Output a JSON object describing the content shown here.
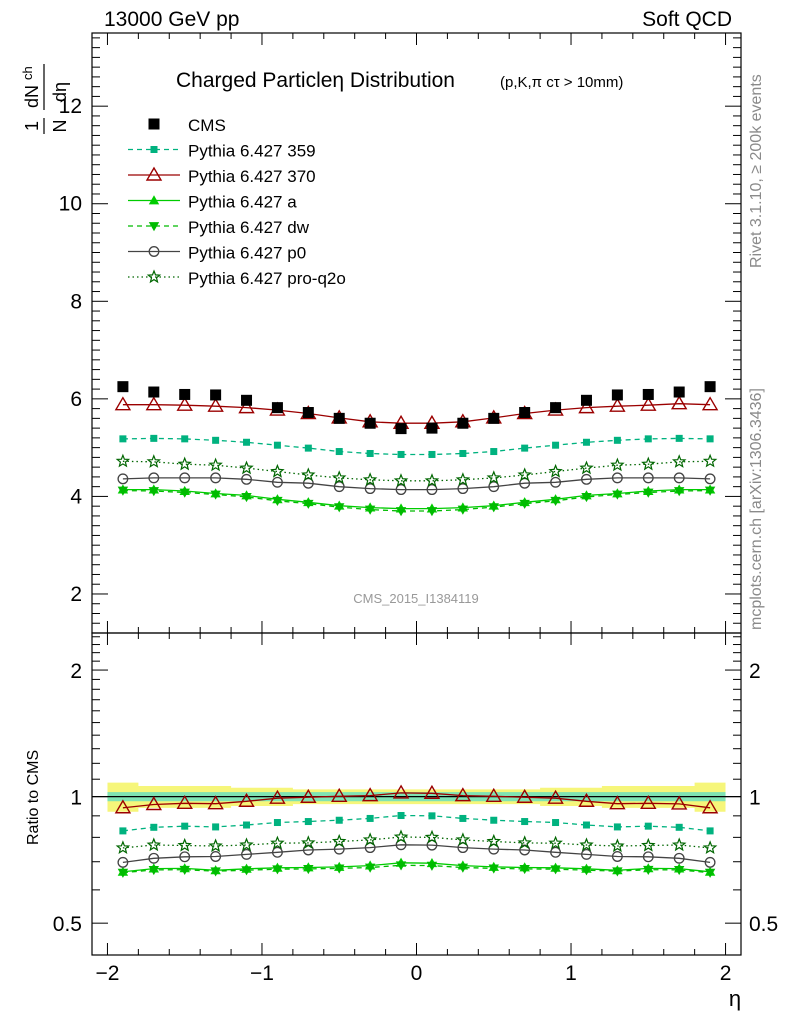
{
  "header": {
    "left": "13000 GeV pp",
    "right": "Soft QCD"
  },
  "side_labels": {
    "rivet": "Rivet 3.1.10, ≥ 200k events",
    "mcplots": "mcplots.cern.ch [arXiv:1306.3436]"
  },
  "chart_data": {
    "type": "line",
    "title": "Charged Particleη Distribution",
    "title_sub": "(p,K,π cτ > 10mm)",
    "watermark": "CMS_2015_I1384119",
    "xlabel": "η",
    "ylabel_main": "1/N dN_ch/dη",
    "ylabel_ratio": "Ratio to CMS",
    "xlim": [
      -2.1,
      2.1
    ],
    "ylim_main": [
      1.2,
      13.5
    ],
    "ylim_ratio": [
      0.42,
      2.45
    ],
    "ratio_log": true,
    "x_ticks": [
      "−2",
      "−1",
      "0",
      "1",
      "2"
    ],
    "y_ticks_main": [
      "2",
      "4",
      "6",
      "8",
      "10",
      "12"
    ],
    "y_ticks_ratio": [
      "0.5",
      "1",
      "2"
    ],
    "x": [
      -1.9,
      -1.7,
      -1.5,
      -1.3,
      -1.1,
      -0.9,
      -0.7,
      -0.5,
      -0.3,
      -0.1,
      0.1,
      0.3,
      0.5,
      0.7,
      0.9,
      1.1,
      1.3,
      1.5,
      1.7,
      1.9
    ],
    "legend_position": "top-left",
    "data": {
      "name": "CMS",
      "color": "#000000",
      "values": [
        6.25,
        6.14,
        6.09,
        6.08,
        5.97,
        5.82,
        5.72,
        5.6,
        5.5,
        5.39,
        5.4,
        5.5,
        5.6,
        5.72,
        5.82,
        5.97,
        6.08,
        6.09,
        6.14,
        6.25
      ]
    },
    "series": [
      {
        "name": "Pythia 6.427 359",
        "color": "#00b27f",
        "dash": "5,4",
        "marker": "square",
        "values": [
          5.18,
          5.19,
          5.18,
          5.15,
          5.11,
          5.05,
          4.99,
          4.92,
          4.88,
          4.86,
          4.86,
          4.88,
          4.92,
          4.99,
          5.05,
          5.11,
          5.15,
          5.18,
          5.19,
          5.18
        ]
      },
      {
        "name": "Pythia 6.427 370",
        "color": "#9b0000",
        "dash": "",
        "marker": "triangle-open",
        "values": [
          5.88,
          5.88,
          5.87,
          5.85,
          5.82,
          5.77,
          5.7,
          5.61,
          5.53,
          5.5,
          5.5,
          5.53,
          5.61,
          5.7,
          5.77,
          5.82,
          5.85,
          5.87,
          5.9,
          5.88
        ]
      },
      {
        "name": "Pythia 6.427 a",
        "color": "#00cc00",
        "dash": "",
        "marker": "triangle",
        "values": [
          4.14,
          4.14,
          4.11,
          4.06,
          4.02,
          3.94,
          3.88,
          3.81,
          3.77,
          3.75,
          3.75,
          3.77,
          3.81,
          3.88,
          3.94,
          4.02,
          4.06,
          4.11,
          4.14,
          4.14
        ]
      },
      {
        "name": "Pythia 6.427 dw",
        "color": "#00bb00",
        "dash": "5,4",
        "marker": "triangle-down",
        "values": [
          4.12,
          4.11,
          4.08,
          4.04,
          3.99,
          3.91,
          3.85,
          3.78,
          3.73,
          3.7,
          3.7,
          3.73,
          3.78,
          3.85,
          3.91,
          3.99,
          4.04,
          4.08,
          4.11,
          4.12
        ]
      },
      {
        "name": "Pythia 6.427 p0",
        "color": "#444444",
        "dash": "",
        "marker": "circle-open",
        "values": [
          4.36,
          4.38,
          4.38,
          4.38,
          4.35,
          4.29,
          4.27,
          4.2,
          4.16,
          4.14,
          4.14,
          4.16,
          4.2,
          4.27,
          4.29,
          4.35,
          4.38,
          4.38,
          4.38,
          4.36
        ]
      },
      {
        "name": "Pythia 6.427 pro-q2o",
        "color": "#006600",
        "dash": "1.5,3",
        "marker": "star-open",
        "values": [
          4.72,
          4.71,
          4.66,
          4.64,
          4.58,
          4.51,
          4.44,
          4.38,
          4.34,
          4.32,
          4.32,
          4.34,
          4.38,
          4.44,
          4.51,
          4.58,
          4.64,
          4.66,
          4.71,
          4.72
        ]
      }
    ],
    "ratio_band": {
      "inner_rel": 0.025,
      "outer_rel": [
        0.08,
        0.06,
        0.06,
        0.06,
        0.05,
        0.05,
        0.04,
        0.04,
        0.04,
        0.04,
        0.04,
        0.04,
        0.04,
        0.04,
        0.05,
        0.05,
        0.06,
        0.06,
        0.06,
        0.08
      ],
      "inner_color": "#7fe3b3",
      "outer_color": "#f6f67a"
    }
  }
}
